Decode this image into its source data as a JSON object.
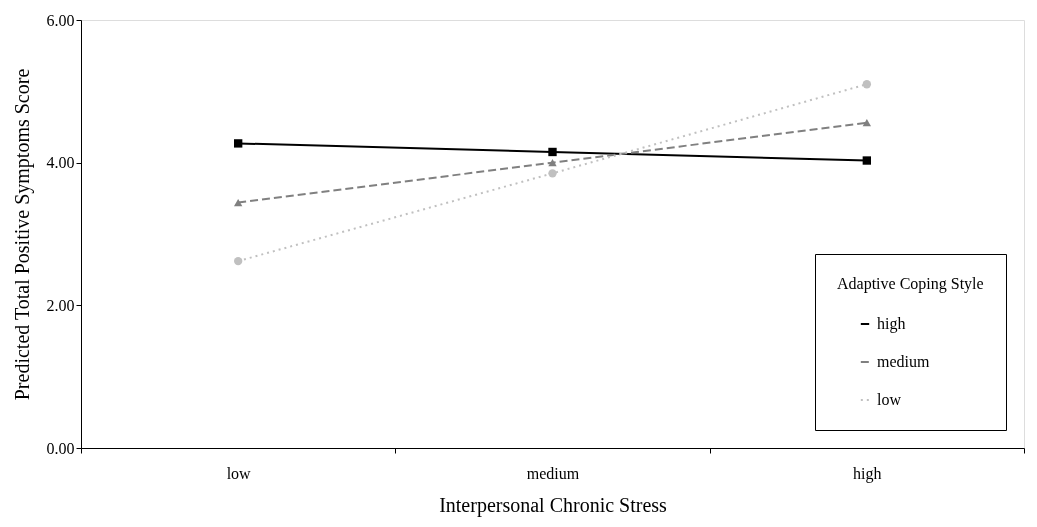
{
  "chart_data": {
    "type": "line",
    "xlabel": "Interpersonal Chronic Stress",
    "ylabel": "Predicted Total Positive Symptoms Score",
    "legend_title": "Adaptive Coping Style",
    "categories": [
      "low",
      "medium",
      "high"
    ],
    "series": [
      {
        "name": "high",
        "color": "#000000",
        "marker": "square",
        "line_style": "solid",
        "values": [
          4.27,
          4.15,
          4.03
        ]
      },
      {
        "name": "medium",
        "color": "#808080",
        "marker": "triangle",
        "line_style": "dashed",
        "values": [
          3.44,
          4.0,
          4.56
        ]
      },
      {
        "name": "low",
        "color": "#c0c0c0",
        "marker": "circle",
        "line_style": "dotted",
        "values": [
          2.62,
          3.85,
          5.1
        ]
      }
    ],
    "ylim": [
      0,
      6
    ],
    "yticks": [
      {
        "value": 0,
        "label": "0.00"
      },
      {
        "value": 2,
        "label": "2.00"
      },
      {
        "value": 4,
        "label": "4.00"
      },
      {
        "value": 6,
        "label": "6.00"
      }
    ],
    "grid": false,
    "legend": "bottom right"
  }
}
